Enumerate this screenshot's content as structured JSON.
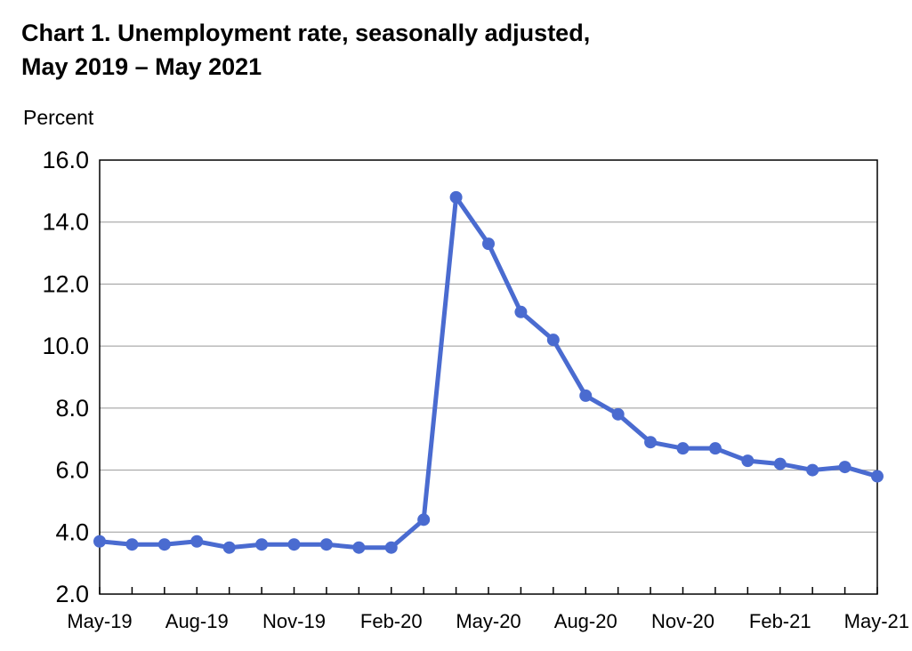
{
  "chart_data": {
    "type": "line",
    "title": "Chart 1. Unemployment rate, seasonally adjusted,",
    "subtitle": "May 2019 – May 2021",
    "ylabel": "Percent",
    "xlabel": "",
    "ylim": [
      2.0,
      16.0
    ],
    "yticks": [
      "2.0",
      "4.0",
      "6.0",
      "8.0",
      "10.0",
      "12.0",
      "14.0",
      "16.0"
    ],
    "ytick_values": [
      2,
      4,
      6,
      8,
      10,
      12,
      14,
      16
    ],
    "grid": true,
    "legend": "none",
    "categories": [
      "May-19",
      "Jun-19",
      "Jul-19",
      "Aug-19",
      "Sep-19",
      "Oct-19",
      "Nov-19",
      "Dec-19",
      "Jan-20",
      "Feb-20",
      "Mar-20",
      "Apr-20",
      "May-20",
      "Jun-20",
      "Jul-20",
      "Aug-20",
      "Sep-20",
      "Oct-20",
      "Nov-20",
      "Dec-20",
      "Jan-21",
      "Feb-21",
      "Mar-21",
      "Apr-21",
      "May-21"
    ],
    "xtick_labels": [
      {
        "index": 0,
        "label": "May-19"
      },
      {
        "index": 3,
        "label": "Aug-19"
      },
      {
        "index": 6,
        "label": "Nov-19"
      },
      {
        "index": 9,
        "label": "Feb-20"
      },
      {
        "index": 12,
        "label": "May-20"
      },
      {
        "index": 15,
        "label": "Aug-20"
      },
      {
        "index": 18,
        "label": "Nov-20"
      },
      {
        "index": 21,
        "label": "Feb-21"
      },
      {
        "index": 24,
        "label": "May-21"
      }
    ],
    "series": [
      {
        "values": [
          3.7,
          3.6,
          3.6,
          3.7,
          3.5,
          3.6,
          3.6,
          3.6,
          3.5,
          3.5,
          4.4,
          14.8,
          13.3,
          11.1,
          10.2,
          8.4,
          7.8,
          6.9,
          6.7,
          6.7,
          6.3,
          6.2,
          6.0,
          6.1,
          5.8
        ],
        "color": "#4A6BD0"
      }
    ],
    "colors": {
      "line": "#4A6BD0",
      "grid": "#999999",
      "axis": "#000000"
    }
  }
}
